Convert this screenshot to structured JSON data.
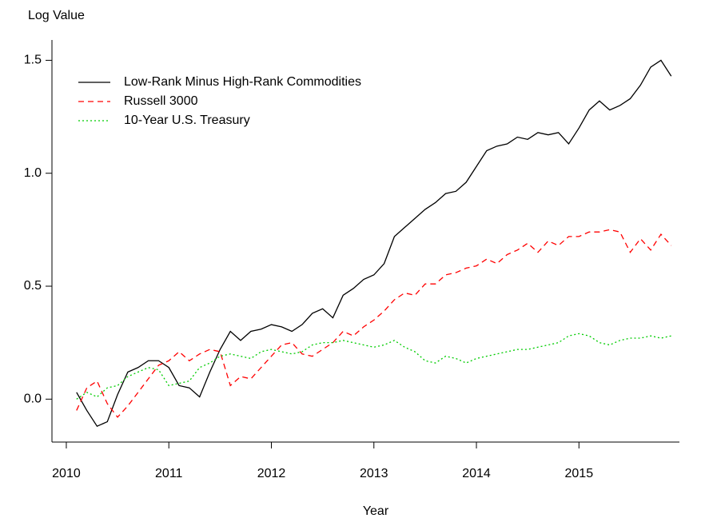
{
  "chart_data": {
    "type": "line",
    "ylabel": "Log Value",
    "xlabel": "Year",
    "xlim": [
      2009.86,
      2015.98
    ],
    "ylim": [
      -0.19,
      1.59
    ],
    "xticks": [
      2010,
      2011,
      2012,
      2013,
      2014,
      2015
    ],
    "yticks": [
      {
        "value": 0,
        "label": "0.0"
      },
      0.5,
      {
        "value": 1,
        "label": "1.0"
      },
      1.5
    ],
    "legend": "top-left",
    "x": [
      2010.1,
      2010.2,
      2010.3,
      2010.4,
      2010.5,
      2010.6,
      2010.7,
      2010.8,
      2010.9,
      2011.0,
      2011.1,
      2011.2,
      2011.3,
      2011.4,
      2011.5,
      2011.6,
      2011.7,
      2011.8,
      2011.9,
      2012.0,
      2012.1,
      2012.2,
      2012.3,
      2012.4,
      2012.5,
      2012.6,
      2012.7,
      2012.8,
      2012.9,
      2013.0,
      2013.1,
      2013.2,
      2013.3,
      2013.4,
      2013.5,
      2013.6,
      2013.7,
      2013.8,
      2013.9,
      2014.0,
      2014.1,
      2014.2,
      2014.3,
      2014.4,
      2014.5,
      2014.6,
      2014.7,
      2014.8,
      2014.9,
      2015.0,
      2015.1,
      2015.2,
      2015.3,
      2015.4,
      2015.5,
      2015.6,
      2015.7,
      2015.8,
      2015.9
    ],
    "series": [
      {
        "name": "Low-Rank Minus High-Rank Commodities",
        "color": "#000000",
        "linestyle": "solid",
        "values": [
          0.03,
          -0.05,
          -0.12,
          -0.1,
          0.02,
          0.12,
          0.14,
          0.17,
          0.17,
          0.14,
          0.06,
          0.05,
          0.01,
          0.12,
          0.22,
          0.3,
          0.26,
          0.3,
          0.31,
          0.33,
          0.32,
          0.3,
          0.33,
          0.38,
          0.4,
          0.36,
          0.46,
          0.49,
          0.53,
          0.55,
          0.6,
          0.72,
          0.76,
          0.8,
          0.84,
          0.87,
          0.91,
          0.92,
          0.96,
          1.03,
          1.1,
          1.12,
          1.13,
          1.16,
          1.15,
          1.18,
          1.17,
          1.18,
          1.13,
          1.2,
          1.28,
          1.32,
          1.28,
          1.3,
          1.33,
          1.39,
          1.47,
          1.5,
          1.43
        ]
      },
      {
        "name": "Russell 3000",
        "color": "#ff0000",
        "linestyle": "dashed",
        "values": [
          -0.05,
          0.05,
          0.08,
          -0.02,
          -0.08,
          -0.03,
          0.03,
          0.09,
          0.15,
          0.17,
          0.21,
          0.17,
          0.2,
          0.22,
          0.21,
          0.06,
          0.1,
          0.09,
          0.14,
          0.19,
          0.24,
          0.25,
          0.2,
          0.19,
          0.22,
          0.25,
          0.3,
          0.28,
          0.32,
          0.35,
          0.39,
          0.44,
          0.47,
          0.46,
          0.51,
          0.51,
          0.55,
          0.56,
          0.58,
          0.59,
          0.62,
          0.6,
          0.64,
          0.66,
          0.69,
          0.65,
          0.7,
          0.68,
          0.72,
          0.72,
          0.74,
          0.74,
          0.75,
          0.74,
          0.65,
          0.71,
          0.66,
          0.73,
          0.68
        ]
      },
      {
        "name": "10-Year U.S. Treasury",
        "color": "#00cc00",
        "linestyle": "dotted",
        "values": [
          0.0,
          0.03,
          0.01,
          0.05,
          0.06,
          0.1,
          0.12,
          0.14,
          0.13,
          0.06,
          0.07,
          0.08,
          0.14,
          0.16,
          0.19,
          0.2,
          0.19,
          0.18,
          0.21,
          0.22,
          0.21,
          0.2,
          0.21,
          0.24,
          0.25,
          0.25,
          0.26,
          0.25,
          0.24,
          0.23,
          0.24,
          0.26,
          0.23,
          0.21,
          0.17,
          0.16,
          0.19,
          0.18,
          0.16,
          0.18,
          0.19,
          0.2,
          0.21,
          0.22,
          0.22,
          0.23,
          0.24,
          0.25,
          0.28,
          0.29,
          0.28,
          0.25,
          0.24,
          0.26,
          0.27,
          0.27,
          0.28,
          0.27,
          0.28
        ]
      }
    ]
  }
}
